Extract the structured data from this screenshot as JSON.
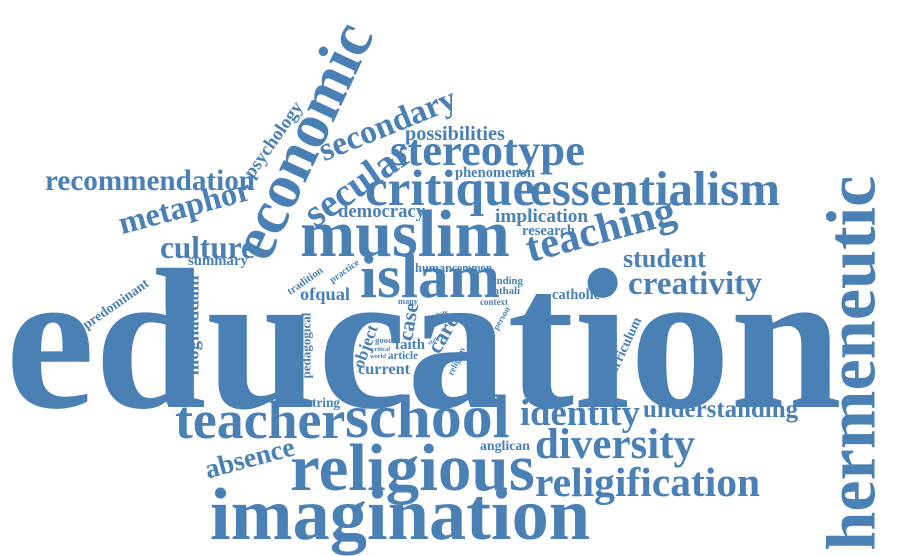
{
  "color": "#4a80b3",
  "words": {
    "education": "education",
    "hermeneutic": "hermeneutic",
    "economic": "economic",
    "imagination": "imagination",
    "religious": "religious",
    "muslim": "muslim",
    "school": "school",
    "critique": "critique",
    "essentialism": "essentialism",
    "islam": "islam",
    "teacher": "teacher",
    "religification": "religification",
    "stereotype": "stereotype",
    "secondary": "secondary",
    "diversity": "diversity",
    "teaching": "teaching",
    "metaphor": "metaphor",
    "secular": "secular",
    "culture": "culture",
    "creativity": "creativity",
    "identity": "identity",
    "recommendation": "recommendation",
    "understanding": "understanding",
    "absence": "absence",
    "student": "student",
    "possibilities": "possibilities",
    "psychology": "psychology",
    "democracy": "democracy",
    "implication": "implication",
    "phenomenon": "phenomenon",
    "research": "research",
    "summary": "summary",
    "predominant": "predominant",
    "moghaddam": "moghaddam",
    "tradition": "tradition",
    "practice": "practice",
    "human": "human",
    "common": "common",
    "ofqual": "ofqual",
    "finding": "finding",
    "fathali": "fathali",
    "context": "context",
    "catholic": "catholic",
    "many": "many",
    "pedagogical": "pedagogical",
    "object": "object",
    "case": "case",
    "good": "good",
    "critical": "critical",
    "world": "world",
    "faith": "faith",
    "article": "article",
    "care": "care",
    "current": "current",
    "religion": "religion",
    "enquiry": "enquiry",
    "person": "person",
    "state": "state",
    "way": "way",
    "curriculum": "curriculum",
    "centring": "centring",
    "anglican": "anglican"
  }
}
